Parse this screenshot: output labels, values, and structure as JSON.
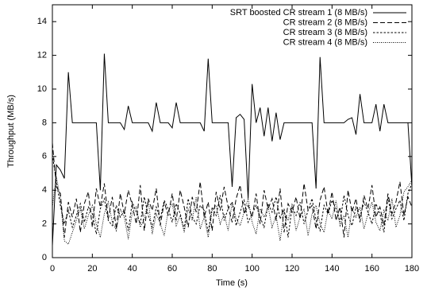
{
  "chart_data": {
    "type": "line",
    "xlabel": "Time (s)",
    "ylabel": "Throughput (MB/s)",
    "xlim": [
      0,
      180
    ],
    "ylim": [
      0,
      15
    ],
    "xticks": [
      0,
      20,
      40,
      60,
      80,
      100,
      120,
      140,
      160,
      180
    ],
    "yticks": [
      0,
      2,
      4,
      6,
      8,
      10,
      12,
      14
    ],
    "legend": "top-right",
    "x": [
      0,
      2,
      4,
      6,
      8,
      10,
      12,
      14,
      16,
      18,
      20,
      22,
      24,
      26,
      28,
      30,
      32,
      34,
      36,
      38,
      40,
      42,
      44,
      46,
      48,
      50,
      52,
      54,
      56,
      58,
      60,
      62,
      64,
      66,
      68,
      70,
      72,
      74,
      76,
      78,
      80,
      82,
      84,
      86,
      88,
      90,
      92,
      94,
      96,
      98,
      100,
      102,
      104,
      106,
      108,
      110,
      112,
      114,
      116,
      118,
      120,
      122,
      124,
      126,
      128,
      130,
      132,
      134,
      136,
      138,
      140,
      142,
      144,
      146,
      148,
      150,
      152,
      154,
      156,
      158,
      160,
      162,
      164,
      166,
      168,
      170,
      172,
      174,
      176,
      178,
      180
    ],
    "series": [
      {
        "name": "SRT boosted CR stream 1 (8 MB/s)",
        "color": "#000000",
        "dash": "none",
        "values": [
          0.7,
          5.5,
          5.2,
          4.7,
          11,
          8,
          8,
          8,
          8,
          8,
          8,
          8,
          4,
          12.1,
          8,
          8,
          8,
          8,
          7.6,
          9,
          8,
          8,
          8,
          8,
          8,
          7.5,
          9.2,
          8,
          8,
          8,
          7.7,
          9.2,
          8,
          8,
          8,
          8,
          8,
          8,
          7.5,
          11.8,
          8,
          8,
          8,
          8,
          8,
          4.2,
          8.3,
          8.5,
          8.2,
          3.5,
          10.3,
          8,
          8.9,
          7.2,
          8.9,
          6.9,
          8.6,
          7,
          8,
          8,
          8,
          8,
          8,
          8,
          8,
          8,
          4.1,
          11.9,
          8,
          8,
          8,
          8,
          8,
          8,
          8.2,
          8.3,
          7.3,
          9.7,
          8,
          8,
          8,
          9.1,
          7.5,
          9.1,
          8,
          8,
          8,
          8,
          8,
          8,
          4.2
        ]
      },
      {
        "name": "CR stream 2 (8 MB/s)",
        "color": "#000000",
        "dash": "6,3",
        "values": [
          6.8,
          4.2,
          3.8,
          1.2,
          3.3,
          2.4,
          3.5,
          1.5,
          3.2,
          3.9,
          1.8,
          4.1,
          3.0,
          4.4,
          2.3,
          3.6,
          1.7,
          3.8,
          2.6,
          4.0,
          3.1,
          2.0,
          4.3,
          1.6,
          3.5,
          2.8,
          4.1,
          1.9,
          3.3,
          2.5,
          3.8,
          2.2,
          4.0,
          3.0,
          1.8,
          3.6,
          2.7,
          4.5,
          2.4,
          3.3,
          1.6,
          3.9,
          2.8,
          4.2,
          3.0,
          2.1,
          3.5,
          4.3,
          2.6,
          3.1,
          2.4,
          3.8,
          2.0,
          4.0,
          2.9,
          3.5,
          2.2,
          4.1,
          1.5,
          3.2,
          2.7,
          3.6,
          2.3,
          4.4,
          2.8,
          3.1,
          1.7,
          3.4,
          4.2,
          2.6,
          3.9,
          2.2,
          3.0,
          1.2,
          4.0,
          2.7,
          3.5,
          2.1,
          3.7,
          2.9,
          4.3,
          2.4,
          3.0,
          1.9,
          3.8,
          2.6,
          3.3,
          4.5,
          2.5,
          3.6,
          3.0
        ]
      },
      {
        "name": "CR stream 3 (8 MB/s)",
        "color": "#000000",
        "dash": "2.5,2",
        "values": [
          6.1,
          4.5,
          3.1,
          2.0,
          2.8,
          1.8,
          2.5,
          3.2,
          2.1,
          3.0,
          2.6,
          1.4,
          2.9,
          3.5,
          2.2,
          1.9,
          3.1,
          2.4,
          2.8,
          1.6,
          3.3,
          2.7,
          2.0,
          3.6,
          2.5,
          1.8,
          3.0,
          2.3,
          3.4,
          2.9,
          2.1,
          3.2,
          2.6,
          1.7,
          3.5,
          2.4,
          2.0,
          3.1,
          2.8,
          1.5,
          3.0,
          2.5,
          3.7,
          2.2,
          2.9,
          3.3,
          1.9,
          2.7,
          3.4,
          2.1,
          2.6,
          3.1,
          2.4,
          1.8,
          3.2,
          2.7,
          3.6,
          2.3,
          2.9,
          1.2,
          3.0,
          2.5,
          3.3,
          2.0,
          2.8,
          3.5,
          2.2,
          1.6,
          3.1,
          2.6,
          3.4,
          2.9,
          2.1,
          3.7,
          2.5,
          1.9,
          3.0,
          2.4,
          3.3,
          2.7,
          2.0,
          3.2,
          2.6,
          1.5,
          3.6,
          2.3,
          2.9,
          3.4,
          2.2,
          3.8,
          4.4
        ]
      },
      {
        "name": "CR stream 4 (8 MB/s)",
        "color": "#000000",
        "dash": "1,1.5",
        "values": [
          3.0,
          4.8,
          3.5,
          1.0,
          0.8,
          1.5,
          2.2,
          2.9,
          1.7,
          2.5,
          3.1,
          2.0,
          1.2,
          2.6,
          3.3,
          2.1,
          1.6,
          2.9,
          2.4,
          1.1,
          2.7,
          3.0,
          1.8,
          2.3,
          3.4,
          1.4,
          2.6,
          2.0,
          1.3,
          2.8,
          3.2,
          1.9,
          2.5,
          1.5,
          2.9,
          2.2,
          3.6,
          1.7,
          2.4,
          1.2,
          2.8,
          3.1,
          2.0,
          2.6,
          1.6,
          3.3,
          2.3,
          1.9,
          2.7,
          3.5,
          2.1,
          1.4,
          2.9,
          2.4,
          3.0,
          1.8,
          2.5,
          1.0,
          2.7,
          2.2,
          3.2,
          1.6,
          2.4,
          2.9,
          1.3,
          2.6,
          3.1,
          2.0,
          1.5,
          2.8,
          2.3,
          3.4,
          1.9,
          2.5,
          1.2,
          2.9,
          2.4,
          3.0,
          1.7,
          2.6,
          3.3,
          2.1,
          1.6,
          2.8,
          2.2,
          3.5,
          1.8,
          2.5,
          3.9,
          4.2,
          4.6
        ]
      }
    ]
  }
}
